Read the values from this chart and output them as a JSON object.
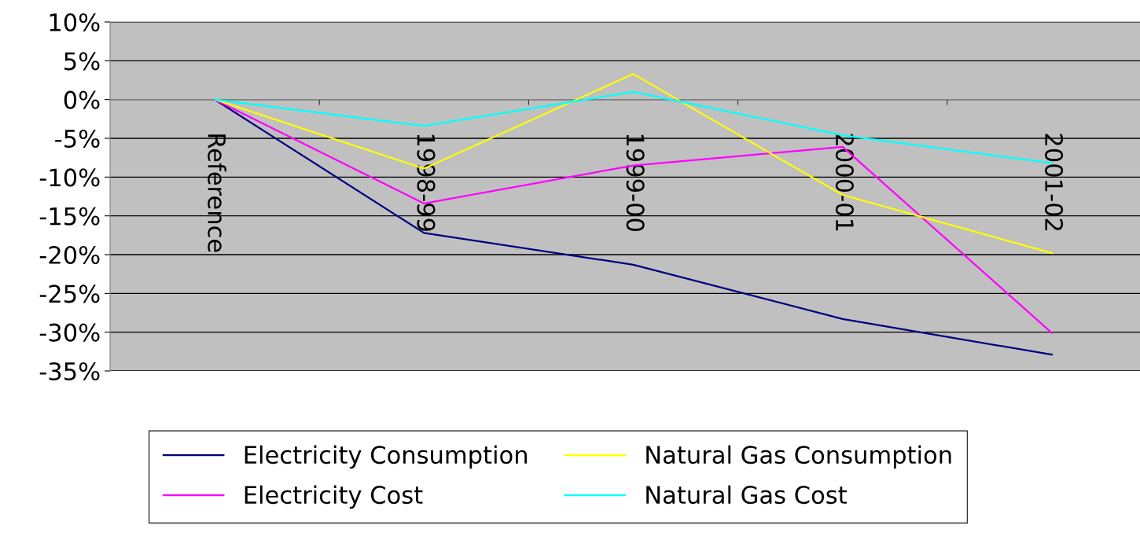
{
  "chart_data": {
    "type": "line",
    "categories": [
      "Reference",
      "1998-99",
      "1999-00",
      "2000-01",
      "2001-02"
    ],
    "series": [
      {
        "name": "Electricity Consumption",
        "color": "#000080",
        "values": [
          0,
          -17.2,
          -21.3,
          -28.3,
          -32.9
        ]
      },
      {
        "name": "Electricity Cost",
        "color": "#ff00ff",
        "values": [
          0,
          -13.4,
          -8.5,
          -6.1,
          -30.1
        ]
      },
      {
        "name": "Natural Gas Consumption",
        "color": "#ffff00",
        "values": [
          0,
          -8.9,
          3.3,
          -12.3,
          -19.8
        ]
      },
      {
        "name": "Natural Gas Cost",
        "color": "#00ffff",
        "values": [
          0,
          -3.4,
          1.0,
          -4.6,
          -8.2
        ]
      }
    ],
    "ylim": [
      -35,
      10
    ],
    "yticks": [
      {
        "value": 10,
        "label": "10%"
      },
      {
        "value": 5,
        "label": "5%"
      },
      {
        "value": 0,
        "label": "0%"
      },
      {
        "value": -5,
        "label": "-5%"
      },
      {
        "value": -10,
        "label": "-10%"
      },
      {
        "value": -15,
        "label": "-15%"
      },
      {
        "value": -20,
        "label": "-20%"
      },
      {
        "value": -25,
        "label": "-25%"
      },
      {
        "value": -30,
        "label": "-30%"
      },
      {
        "value": -35,
        "label": "-35%"
      }
    ],
    "grid": "y",
    "legend": "bottom",
    "marker": "none",
    "line_style": "solid"
  }
}
